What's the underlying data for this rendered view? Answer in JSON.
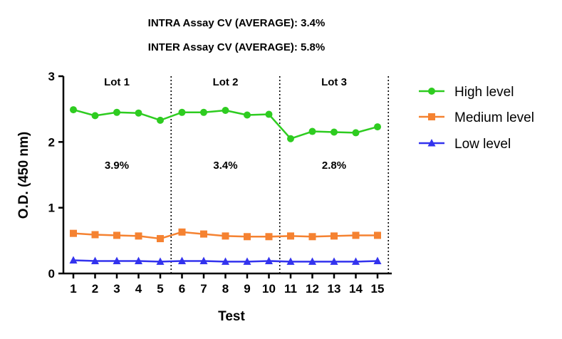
{
  "chart_data": {
    "type": "line",
    "annotations": {
      "intra_cv": "INTRA Assay CV (AVERAGE): 3.4%",
      "inter_cv": "INTER Assay CV (AVERAGE): 5.8%"
    },
    "xlabel": "Test",
    "ylabel": "O.D. (450 nm)",
    "ylim": [
      0,
      3
    ],
    "yticks": [
      "0",
      "1",
      "2",
      "3"
    ],
    "x": [
      1,
      2,
      3,
      4,
      5,
      6,
      7,
      8,
      9,
      10,
      11,
      12,
      13,
      14,
      15
    ],
    "xticks": [
      "1",
      "2",
      "3",
      "4",
      "5",
      "6",
      "7",
      "8",
      "9",
      "10",
      "11",
      "12",
      "13",
      "14",
      "15"
    ],
    "lots": [
      {
        "label": "Lot 1",
        "cv": "3.9%",
        "start": 1,
        "end": 5
      },
      {
        "label": "Lot 2",
        "cv": "3.4%",
        "start": 6,
        "end": 10
      },
      {
        "label": "Lot 3",
        "cv": "2.8%",
        "start": 11,
        "end": 15
      }
    ],
    "series": [
      {
        "name": "High level",
        "color": "#2ecc20",
        "marker": "circle",
        "values": [
          2.49,
          2.4,
          2.45,
          2.44,
          2.33,
          2.45,
          2.45,
          2.48,
          2.41,
          2.42,
          2.05,
          2.16,
          2.15,
          2.14,
          2.23
        ]
      },
      {
        "name": "Medium level",
        "color": "#f58231",
        "marker": "square",
        "values": [
          0.61,
          0.59,
          0.58,
          0.57,
          0.53,
          0.63,
          0.6,
          0.57,
          0.56,
          0.56,
          0.57,
          0.56,
          0.57,
          0.58,
          0.58
        ]
      },
      {
        "name": "Low level",
        "color": "#3333ee",
        "marker": "triangle",
        "values": [
          0.2,
          0.19,
          0.19,
          0.19,
          0.18,
          0.19,
          0.19,
          0.18,
          0.18,
          0.19,
          0.18,
          0.18,
          0.18,
          0.18,
          0.19
        ]
      }
    ],
    "legend_position": "right"
  }
}
